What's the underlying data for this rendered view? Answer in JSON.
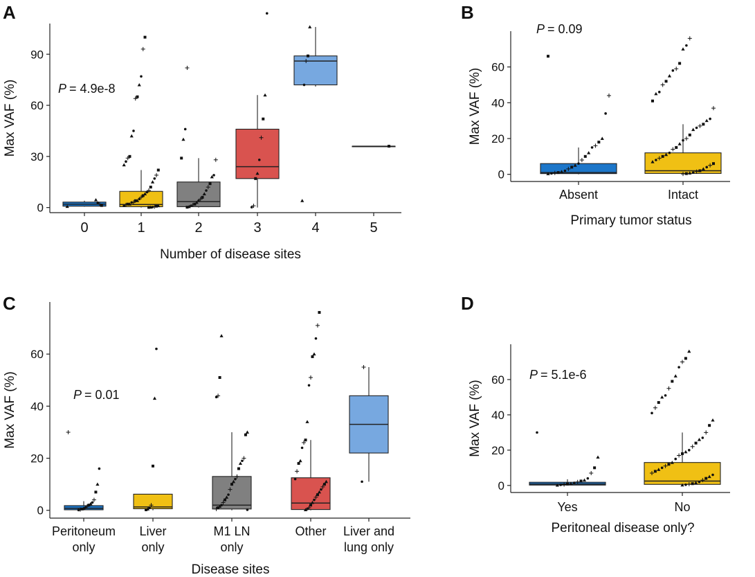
{
  "chart_data": [
    {
      "panel": "A",
      "type": "box",
      "ylabel": "Max VAF (%)",
      "xlabel": "Number of disease sites",
      "p_label": "P",
      "p_value": "= 4.9e-8",
      "ylim": [
        -3,
        108
      ],
      "yticks": [
        0,
        30,
        60,
        90
      ],
      "groups": [
        {
          "label": "0",
          "color": "#1c76c9",
          "box": {
            "min": 0.5,
            "q1": 0.8,
            "median": 2.0,
            "q3": 3.2,
            "max": 4.0
          },
          "points": [
            0.6,
            1.2,
            2.0,
            2.8,
            4.5
          ]
        },
        {
          "label": "1",
          "color": "#f0c014",
          "box": {
            "min": 0,
            "q1": 0.5,
            "median": 1.8,
            "q3": 9.5,
            "max": 22
          },
          "points": [
            100,
            93,
            77,
            72,
            65,
            64,
            45,
            42,
            30,
            29,
            27,
            25,
            22,
            19,
            17,
            15,
            12,
            10,
            9,
            8,
            7,
            6,
            5,
            4,
            4,
            3,
            3,
            2,
            2,
            1.5,
            1,
            1,
            0.8,
            0.5,
            0.3,
            0.2,
            0.1
          ]
        },
        {
          "label": "2",
          "color": "#808080",
          "box": {
            "min": 0,
            "q1": 0.5,
            "median": 3.5,
            "q3": 15,
            "max": 29
          },
          "points": [
            82,
            46,
            40,
            29,
            28,
            19,
            18,
            14,
            12,
            10,
            8,
            6,
            5,
            4,
            3,
            2,
            1.5,
            1,
            0.5,
            0.2
          ]
        },
        {
          "label": "3",
          "color": "#d9534f",
          "box": {
            "min": 0,
            "q1": 17,
            "median": 24,
            "q3": 46,
            "max": 66
          },
          "points": [
            114,
            66,
            52,
            41,
            28,
            20,
            17,
            1,
            0.2
          ]
        },
        {
          "label": "4",
          "color": "#77a8e0",
          "box": {
            "min": 71,
            "q1": 72,
            "median": 86,
            "q3": 89,
            "max": 106
          },
          "points": [
            106,
            89,
            86,
            72,
            4
          ]
        },
        {
          "label": "5",
          "color": "#77a8e0",
          "box": {
            "min": 36,
            "q1": 36,
            "median": 36,
            "q3": 36,
            "max": 36
          },
          "points": [
            36
          ]
        }
      ]
    },
    {
      "panel": "B",
      "type": "box",
      "ylabel": "Max VAF (%)",
      "xlabel": "Primary tumor status",
      "p_label": "P",
      "p_value": "= 0.09",
      "ylim": [
        -4,
        80
      ],
      "yticks": [
        0,
        20,
        40,
        60
      ],
      "groups": [
        {
          "label": "Absent",
          "color": "#1c76c9",
          "box": {
            "min": 0,
            "q1": 0.4,
            "median": 1.0,
            "q3": 6.0,
            "max": 15
          },
          "points": [
            66,
            44,
            34,
            20,
            18,
            16,
            15,
            12,
            10,
            8,
            6,
            5,
            4,
            3,
            2,
            1.5,
            1,
            0.8,
            0.5,
            0.3
          ]
        },
        {
          "label": "Intact",
          "color": "#f0c014",
          "box": {
            "min": 0,
            "q1": 0.5,
            "median": 2.0,
            "q3": 12,
            "max": 28
          },
          "points": [
            76,
            72,
            70,
            62,
            59,
            58,
            55,
            52,
            50,
            46,
            45,
            41,
            37,
            31,
            30,
            28,
            27,
            26,
            25,
            22,
            20,
            19,
            17,
            15,
            14,
            12,
            11,
            10,
            9,
            8,
            7,
            6,
            5,
            4,
            3,
            2,
            1.5,
            1,
            0.7,
            0.4,
            0.2
          ]
        }
      ]
    },
    {
      "panel": "C",
      "type": "box",
      "ylabel": "Max VAF (%)",
      "xlabel": "Disease  sites",
      "p_label": "P",
      "p_value": "= 0.01",
      "ylim": [
        -3,
        80
      ],
      "yticks": [
        0,
        20,
        40,
        60
      ],
      "groups": [
        {
          "label": "Peritoneum only",
          "label_lines": [
            "Peritoneum",
            "only"
          ],
          "color": "#1c76c9",
          "box": {
            "min": 0,
            "q1": 0.2,
            "median": 0.8,
            "q3": 1.8,
            "max": 3.5
          },
          "points": [
            30,
            16,
            10,
            7,
            4,
            3,
            2.5,
            2,
            1.5,
            1,
            0.8,
            0.5,
            0.3,
            0.1
          ]
        },
        {
          "label": "Liver only",
          "label_lines": [
            "Liver",
            "only"
          ],
          "color": "#f0c014",
          "box": {
            "min": 0,
            "q1": 0.6,
            "median": 1.3,
            "q3": 6.2,
            "max": 6.2
          },
          "points": [
            62,
            43,
            17,
            2,
            1,
            0.5,
            0.2
          ]
        },
        {
          "label": "M1 LN only",
          "label_lines": [
            "M1 LN",
            "only"
          ],
          "color": "#808080",
          "box": {
            "min": 0,
            "q1": 0.5,
            "median": 2.0,
            "q3": 13,
            "max": 30
          },
          "points": [
            67,
            51,
            44,
            43.5,
            30,
            29,
            20,
            19,
            18,
            16,
            13,
            12,
            11,
            10,
            8,
            6,
            5,
            4,
            3,
            2,
            1.5,
            1,
            0.5,
            0.2
          ]
        },
        {
          "label": "Other",
          "label_lines": [
            "Other"
          ],
          "color": "#d9534f",
          "box": {
            "min": 0,
            "q1": 0.3,
            "median": 2.8,
            "q3": 12.5,
            "max": 27
          },
          "points": [
            76,
            71,
            66,
            60,
            59,
            51,
            48,
            34,
            27,
            26,
            24,
            19,
            18,
            15,
            12,
            11,
            10,
            9,
            8,
            7,
            6,
            5,
            4,
            3,
            2,
            1,
            0.5,
            0.2
          ]
        },
        {
          "label": "Liver and lung only",
          "label_lines": [
            "Liver and",
            "lung only"
          ],
          "color": "#77a8e0",
          "box": {
            "min": 11,
            "q1": 22,
            "median": 33,
            "q3": 44,
            "max": 55
          },
          "points": [
            55,
            11
          ]
        }
      ]
    },
    {
      "panel": "D",
      "type": "box",
      "ylabel": "Max VAF (%)",
      "xlabel": "Peritoneal disease only?",
      "p_label": "P",
      "p_value": "= 5.1e-6",
      "ylim": [
        -4,
        80
      ],
      "yticks": [
        0,
        20,
        40,
        60
      ],
      "groups": [
        {
          "label": "Yes",
          "color": "#1c76c9",
          "box": {
            "min": 0,
            "q1": 0.2,
            "median": 0.8,
            "q3": 1.8,
            "max": 3.5
          },
          "points": [
            30,
            16,
            10,
            7,
            4,
            3,
            2.5,
            2,
            1.5,
            1,
            0.8,
            0.5,
            0.3,
            0.1
          ]
        },
        {
          "label": "No",
          "color": "#f0c014",
          "box": {
            "min": 0,
            "q1": 0.6,
            "median": 2.5,
            "q3": 13,
            "max": 30
          },
          "points": [
            76,
            72,
            70,
            67,
            62,
            59,
            55,
            51,
            50,
            47,
            44,
            41,
            37,
            34,
            30,
            27,
            26,
            24,
            22,
            20,
            19,
            18,
            17,
            15,
            13,
            12,
            11,
            10,
            9,
            8,
            7,
            6,
            5,
            4,
            3,
            2,
            1.5,
            1,
            0.7,
            0.4,
            0.2
          ]
        }
      ]
    }
  ]
}
